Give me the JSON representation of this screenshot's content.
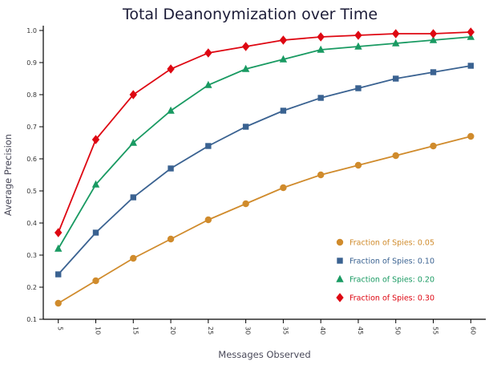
{
  "title": "Total Deanonymization over Time",
  "chart_data": {
    "type": "line",
    "title": "Total Deanonymization over Time",
    "xlabel": "Messages Observed",
    "ylabel": "Average Precision",
    "xlim": [
      3,
      62
    ],
    "ylim": [
      0.1,
      1.0
    ],
    "grid": false,
    "legend_position": "inside lower right",
    "x": [
      5,
      10,
      15,
      20,
      25,
      30,
      35,
      40,
      45,
      50,
      55,
      60
    ],
    "xticks": [
      5,
      10,
      15,
      20,
      25,
      30,
      35,
      40,
      45,
      50,
      55,
      60
    ],
    "yticks": [
      0.1,
      0.2,
      0.3,
      0.4,
      0.5,
      0.6,
      0.7,
      0.8,
      0.9,
      1.0
    ],
    "series": [
      {
        "name": "Fraction of Spies: 0.05",
        "color": "#D08B2C",
        "marker": "circle",
        "values": [
          0.15,
          0.22,
          0.29,
          0.35,
          0.41,
          0.46,
          0.51,
          0.55,
          0.58,
          0.61,
          0.64,
          0.67
        ]
      },
      {
        "name": "Fraction of Spies: 0.10",
        "color": "#3A6291",
        "marker": "square",
        "values": [
          0.24,
          0.37,
          0.48,
          0.57,
          0.64,
          0.7,
          0.75,
          0.79,
          0.82,
          0.85,
          0.87,
          0.89
        ]
      },
      {
        "name": "Fraction of Spies: 0.20",
        "color": "#199A62",
        "marker": "triangle",
        "values": [
          0.32,
          0.52,
          0.65,
          0.75,
          0.83,
          0.88,
          0.91,
          0.94,
          0.95,
          0.96,
          0.97,
          0.98
        ]
      },
      {
        "name": "Fraction of Spies: 0.30",
        "color": "#DE0712",
        "marker": "diamond",
        "values": [
          0.37,
          0.66,
          0.8,
          0.88,
          0.93,
          0.95,
          0.97,
          0.98,
          0.985,
          0.99,
          0.99,
          0.995
        ]
      }
    ]
  }
}
